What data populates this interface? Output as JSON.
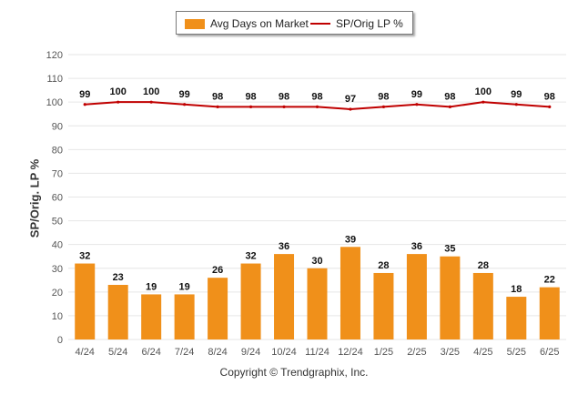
{
  "legend": {
    "bar_label": "Avg Days on Market",
    "line_label": "SP/Orig LP %"
  },
  "ylabel": "SP/Orig. LP %",
  "copyright": "Copyright © Trendgraphix, Inc.",
  "colors": {
    "bar": "#f0901a",
    "line": "#c00000",
    "grid": "#e6e6e6",
    "axis_text": "#555555"
  },
  "chart_data": {
    "type": "bar",
    "categories": [
      "4/24",
      "5/24",
      "6/24",
      "7/24",
      "8/24",
      "9/24",
      "10/24",
      "11/24",
      "12/24",
      "1/25",
      "2/25",
      "3/25",
      "4/25",
      "5/25",
      "6/25"
    ],
    "series": [
      {
        "name": "Avg Days on Market",
        "type": "bar",
        "values": [
          32,
          23,
          19,
          19,
          26,
          32,
          36,
          30,
          39,
          28,
          36,
          35,
          28,
          18,
          22
        ]
      },
      {
        "name": "SP/Orig LP %",
        "type": "line",
        "values": [
          99,
          100,
          100,
          99,
          98,
          98,
          98,
          98,
          97,
          98,
          99,
          98,
          100,
          99,
          98
        ]
      }
    ],
    "ylabel": "SP/Orig. LP %",
    "ylim": [
      0,
      120
    ],
    "yticks": [
      0,
      10,
      20,
      30,
      40,
      50,
      60,
      70,
      80,
      90,
      100,
      110,
      120
    ],
    "grid": true,
    "legend_position": "top-center"
  }
}
